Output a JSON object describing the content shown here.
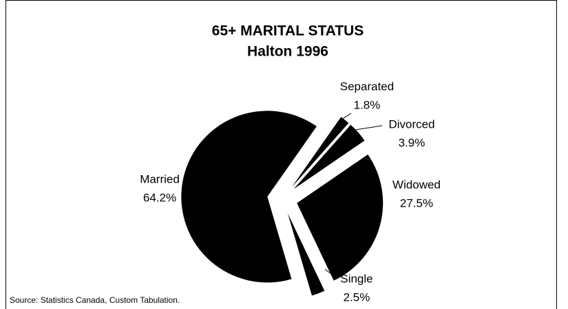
{
  "chart_data": {
    "type": "pie",
    "title": "65+ MARITAL STATUS",
    "subtitle": "Halton 1996",
    "categories": [
      "Separated",
      "Divorced",
      "Widowed",
      "Single",
      "Married"
    ],
    "values": [
      1.8,
      3.9,
      27.5,
      2.5,
      64.2
    ],
    "value_labels": [
      "1.8%",
      "3.9%",
      "27.5%",
      "2.5%",
      "64.2%"
    ],
    "color": "#000000",
    "source": "Source: Statistics Canada, Custom Tabulation."
  }
}
